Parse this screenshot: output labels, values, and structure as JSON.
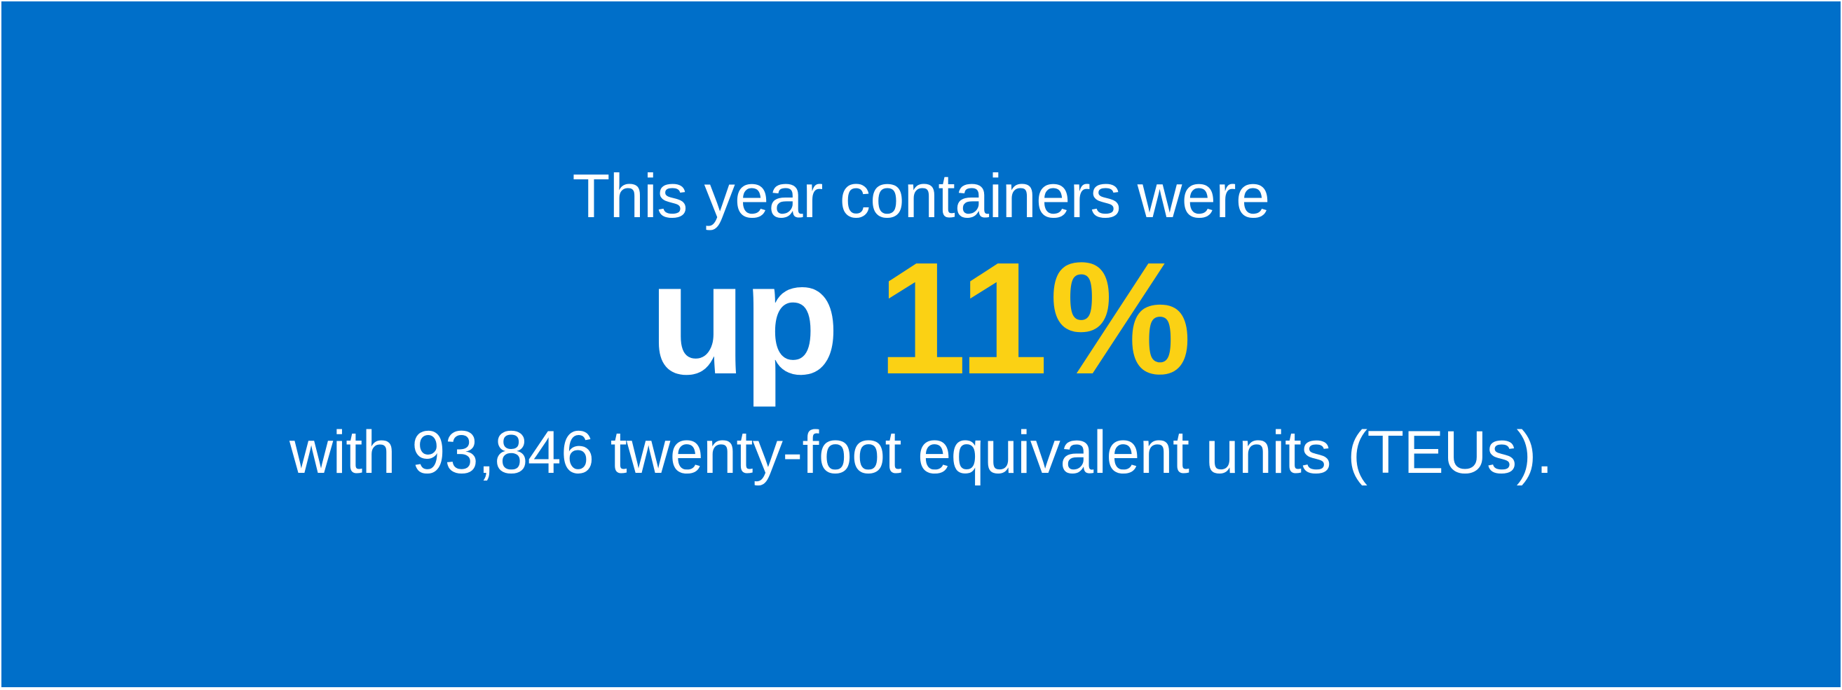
{
  "banner": {
    "background_color": "#006fc9",
    "accent_color": "#fbd114",
    "text_color": "#ffffff",
    "line_top": "This year containers were",
    "headline_prefix": "up",
    "headline_value": "11%",
    "line_bottom": "with 93,846 twenty-foot equivalent units (TEUs)."
  }
}
